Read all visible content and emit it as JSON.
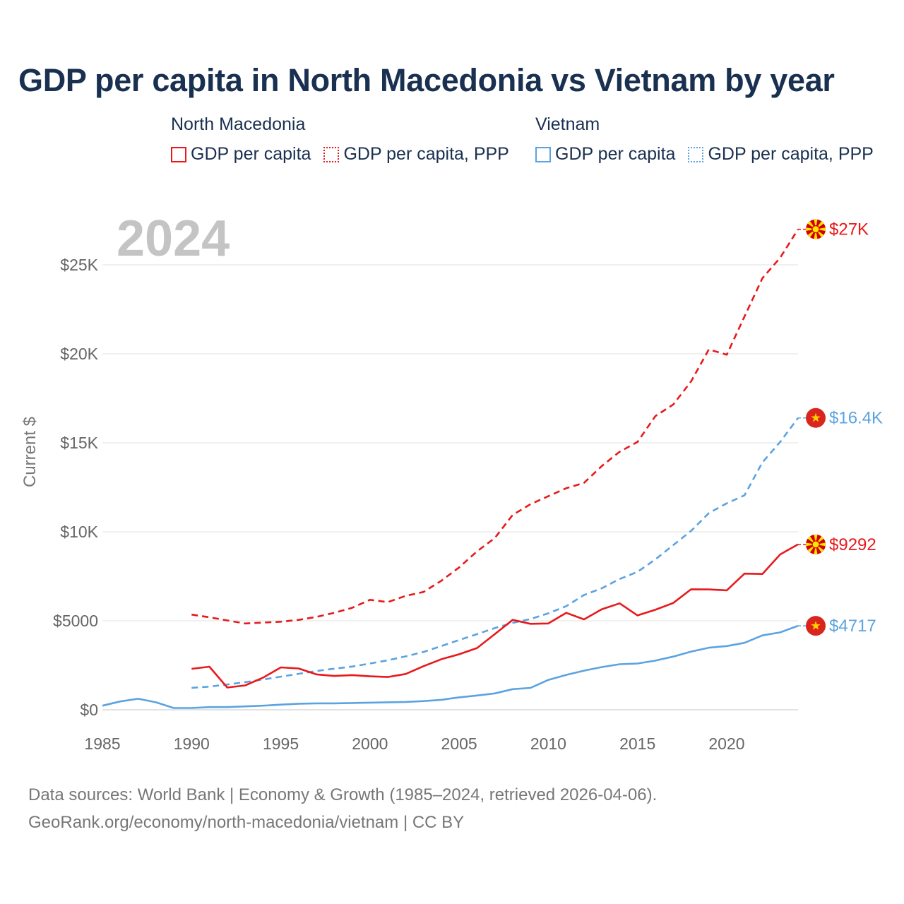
{
  "title": "GDP per capita in North Macedonia vs Vietnam by year",
  "legend": {
    "groups": [
      {
        "name": "North Macedonia",
        "color": "#e8191b",
        "items": [
          {
            "label": "GDP per capita",
            "style": "solid"
          },
          {
            "label": "GDP per capita, PPP",
            "style": "dotted"
          }
        ]
      },
      {
        "name": "Vietnam",
        "color": "#5ba3e0",
        "items": [
          {
            "label": "GDP per capita",
            "style": "solid"
          },
          {
            "label": "GDP per capita, PPP",
            "style": "dotted"
          }
        ]
      }
    ]
  },
  "chart_data": {
    "type": "line",
    "year_watermark": "2024",
    "ylabel": "Current $",
    "xlabel": "",
    "xlim": [
      1985,
      2024
    ],
    "ylim": [
      0,
      27500
    ],
    "x_ticks": [
      {
        "value": 1985,
        "label": "1985"
      },
      {
        "value": 1990,
        "label": "1990"
      },
      {
        "value": 1995,
        "label": "1995"
      },
      {
        "value": 2000,
        "label": "2000"
      },
      {
        "value": 2005,
        "label": "2005"
      },
      {
        "value": 2010,
        "label": "2010"
      },
      {
        "value": 2015,
        "label": "2015"
      },
      {
        "value": 2020,
        "label": "2020"
      }
    ],
    "y_ticks": [
      {
        "value": 0,
        "label": "$0"
      },
      {
        "value": 5000,
        "label": "$5000"
      },
      {
        "value": 10000,
        "label": "$10K"
      },
      {
        "value": 15000,
        "label": "$15K"
      },
      {
        "value": 20000,
        "label": "$20K"
      },
      {
        "value": 25000,
        "label": "$25K"
      }
    ],
    "series": [
      {
        "name": "North Macedonia GDP per capita, PPP",
        "color": "#e8191b",
        "dash": "dashed",
        "flag": "north-macedonia",
        "end_label": "$27K",
        "x": [
          1990,
          1991,
          1992,
          1993,
          1994,
          1995,
          1996,
          1997,
          1998,
          1999,
          2000,
          2001,
          2002,
          2003,
          2004,
          2005,
          2006,
          2007,
          2008,
          2009,
          2010,
          2011,
          2012,
          2013,
          2014,
          2015,
          2016,
          2017,
          2018,
          2019,
          2020,
          2021,
          2022,
          2023,
          2024
        ],
        "values": [
          5350,
          5200,
          5020,
          4850,
          4900,
          4950,
          5050,
          5220,
          5450,
          5730,
          6180,
          6050,
          6400,
          6620,
          7250,
          8000,
          8900,
          9650,
          10950,
          11550,
          12000,
          12450,
          12750,
          13700,
          14500,
          15050,
          16500,
          17150,
          18450,
          20250,
          19950,
          22100,
          24250,
          25400,
          27000
        ]
      },
      {
        "name": "Vietnam GDP per capita, PPP",
        "color": "#5ba3e0",
        "dash": "dashed",
        "flag": "vietnam",
        "end_label": "$16.4K",
        "x": [
          1990,
          1991,
          1992,
          1993,
          1994,
          1995,
          1996,
          1997,
          1998,
          1999,
          2000,
          2001,
          2002,
          2003,
          2004,
          2005,
          2006,
          2007,
          2008,
          2009,
          2010,
          2011,
          2012,
          2013,
          2014,
          2015,
          2016,
          2017,
          2018,
          2019,
          2020,
          2021,
          2022,
          2023,
          2024
        ],
        "values": [
          1230,
          1300,
          1420,
          1550,
          1700,
          1860,
          2020,
          2180,
          2310,
          2430,
          2600,
          2780,
          3000,
          3250,
          3580,
          3920,
          4250,
          4590,
          4880,
          5100,
          5420,
          5820,
          6450,
          6830,
          7350,
          7750,
          8450,
          9250,
          10050,
          11050,
          11600,
          12050,
          13900,
          15050,
          16400
        ]
      },
      {
        "name": "North Macedonia GDP per capita",
        "color": "#e8191b",
        "dash": "solid",
        "flag": "north-macedonia",
        "end_label": "$9292",
        "x": [
          1990,
          1991,
          1992,
          1993,
          1994,
          1995,
          1996,
          1997,
          1998,
          1999,
          2000,
          2001,
          2002,
          2003,
          2004,
          2005,
          2006,
          2007,
          2008,
          2009,
          2010,
          2011,
          2012,
          2013,
          2014,
          2015,
          2016,
          2017,
          2018,
          2019,
          2020,
          2021,
          2022,
          2023,
          2024
        ],
        "values": [
          2300,
          2420,
          1250,
          1370,
          1800,
          2380,
          2320,
          1990,
          1900,
          1950,
          1880,
          1840,
          2010,
          2450,
          2840,
          3120,
          3470,
          4250,
          5050,
          4830,
          4850,
          5450,
          5080,
          5650,
          5980,
          5300,
          5620,
          6000,
          6770,
          6760,
          6710,
          7650,
          7630,
          8730,
          9292
        ]
      },
      {
        "name": "Vietnam GDP per capita",
        "color": "#5ba3e0",
        "dash": "solid",
        "flag": "vietnam",
        "end_label": "$4717",
        "x": [
          1985,
          1986,
          1987,
          1988,
          1989,
          1990,
          1991,
          1992,
          1993,
          1994,
          1995,
          1996,
          1997,
          1998,
          1999,
          2000,
          2001,
          2002,
          2003,
          2004,
          2005,
          2006,
          2007,
          2008,
          2009,
          2010,
          2011,
          2012,
          2013,
          2014,
          2015,
          2016,
          2017,
          2018,
          2019,
          2020,
          2021,
          2022,
          2023,
          2024
        ],
        "values": [
          230,
          470,
          620,
          420,
          100,
          100,
          150,
          150,
          190,
          230,
          290,
          340,
          360,
          360,
          380,
          400,
          420,
          440,
          490,
          560,
          700,
          800,
          920,
          1160,
          1230,
          1680,
          1960,
          2200,
          2400,
          2560,
          2600,
          2760,
          2990,
          3270,
          3490,
          3580,
          3760,
          4180,
          4350,
          4717
        ]
      }
    ]
  },
  "footer": {
    "line1": "Data sources: World Bank | Economy & Growth (1985–2024, retrieved 2026-04-06).",
    "line2": "GeoRank.org/economy/north-macedonia/vietnam | CC BY"
  }
}
